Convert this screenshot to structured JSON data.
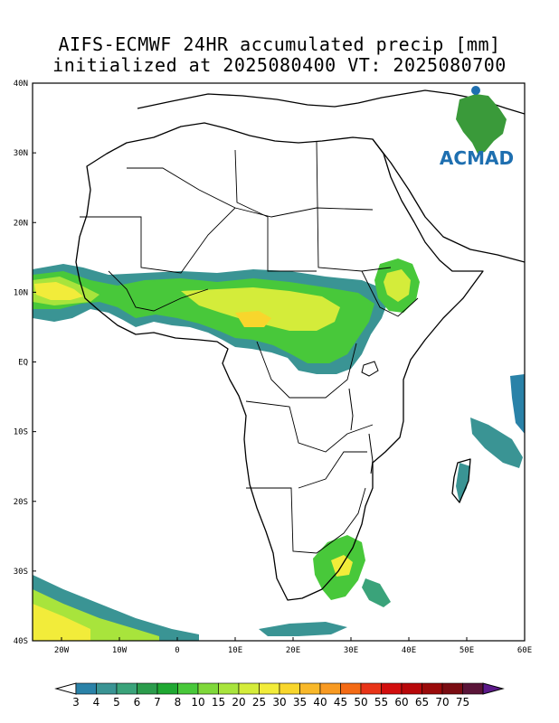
{
  "title": {
    "line1": "AIFS-ECMWF 24HR accumulated precip [mm]",
    "line2": "initialized at 2025080400 VT: 2025080700"
  },
  "logo": {
    "text": "ACMAD"
  },
  "axes": {
    "lat_labels": [
      "40N",
      "30N",
      "20N",
      "10N",
      "EQ",
      "10S",
      "20S",
      "30S",
      "40S"
    ],
    "lon_labels": [
      "20W",
      "10W",
      "0",
      "10E",
      "20E",
      "30E",
      "40E",
      "50E",
      "60E"
    ]
  },
  "colorbar": {
    "levels": [
      "3",
      "4",
      "5",
      "6",
      "7",
      "8",
      "10",
      "15",
      "20",
      "25",
      "30",
      "35",
      "40",
      "45",
      "50",
      "55",
      "60",
      "65",
      "70",
      "75"
    ],
    "colors": [
      "#2a82a8",
      "#3a9494",
      "#3aa37a",
      "#2b9c4c",
      "#1fa832",
      "#48c83a",
      "#7fd83a",
      "#a8e43c",
      "#d4ec3a",
      "#f2ec3a",
      "#f8d62c",
      "#f8b82a",
      "#f89a22",
      "#f46a14",
      "#e83418",
      "#d20e0e",
      "#b8080a",
      "#9a0a0a",
      "#7a0c12",
      "#5a1438"
    ],
    "end_colors": [
      "#ffffff",
      "#5c1a8a"
    ]
  }
}
